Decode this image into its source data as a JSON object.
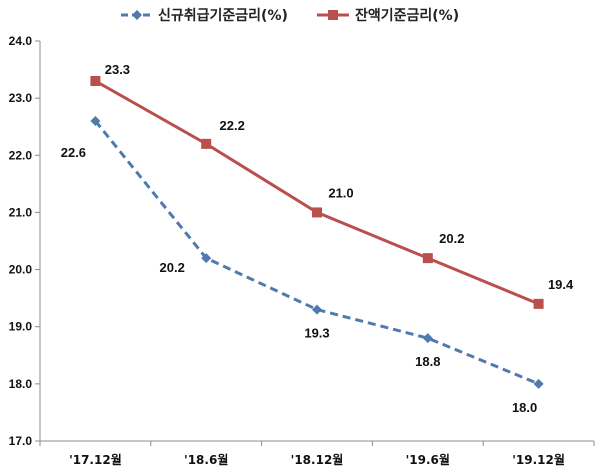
{
  "chart_data": {
    "type": "line",
    "title": "",
    "xlabel": "",
    "ylabel": "",
    "categories": [
      "'17.12월",
      "'18.6월",
      "'18.12월",
      "'19.6월",
      "'19.12월"
    ],
    "ylim": [
      17.0,
      24.0
    ],
    "yticks": [
      "17.0",
      "18.0",
      "19.0",
      "20.0",
      "21.0",
      "22.0",
      "23.0",
      "24.0"
    ],
    "grid": false,
    "legend": "top",
    "series": [
      {
        "name": "신규취급기준금리(%)",
        "values": [
          22.6,
          20.2,
          19.3,
          18.8,
          18.0
        ],
        "labels": [
          "22.6",
          "20.2",
          "19.3",
          "18.8",
          "18.0"
        ],
        "color": "#4F7AAE",
        "line_style": "dashed",
        "marker": "diamond"
      },
      {
        "name": "잔액기준금리(%)",
        "values": [
          23.3,
          22.2,
          21.0,
          20.2,
          19.4
        ],
        "labels": [
          "23.3",
          "22.2",
          "21.0",
          "20.2",
          "19.4"
        ],
        "color": "#B9504D",
        "line_style": "solid",
        "marker": "square"
      }
    ]
  }
}
